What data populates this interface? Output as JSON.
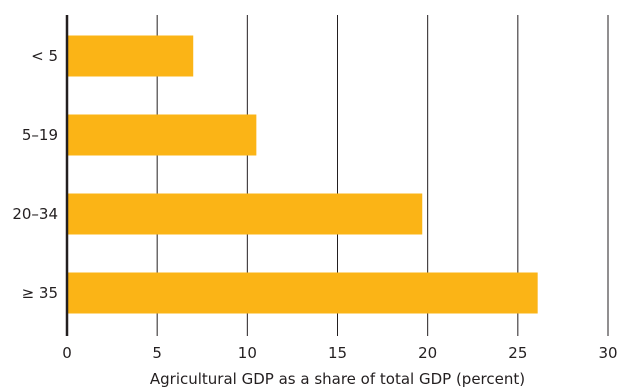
{
  "chart_data": {
    "type": "bar",
    "orientation": "horizontal",
    "categories": [
      "< 5",
      "5–19",
      "20–34",
      "≥ 35"
    ],
    "values": [
      7.0,
      10.5,
      19.7,
      26.1
    ],
    "xlim": [
      0,
      30
    ],
    "xticks": [
      "0",
      "5",
      "10",
      "15",
      "20",
      "25",
      "30"
    ],
    "xlabel": "Agricultural GDP as a share of total GDP (percent)",
    "ylabel": "",
    "title": "",
    "grid": "vertical",
    "bar_color": "#fbb416",
    "grid_color": "#231f20"
  }
}
